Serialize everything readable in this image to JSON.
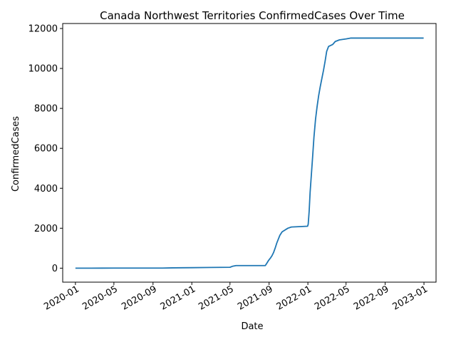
{
  "chart_data": {
    "type": "line",
    "title": "Canada Northwest Territories ConfirmedCases Over Time",
    "xlabel": "Date",
    "ylabel": "ConfirmedCases",
    "grid": false,
    "legend": "none",
    "xlim": [
      "2019-11-22",
      "2023-02-08"
    ],
    "ylim": [
      -700,
      12250
    ],
    "x_ticks": [
      "2020-01",
      "2020-05",
      "2020-09",
      "2021-01",
      "2021-05",
      "2021-09",
      "2022-01",
      "2022-05",
      "2022-09",
      "2023-01"
    ],
    "y_ticks": [
      0,
      2000,
      4000,
      6000,
      8000,
      10000,
      12000
    ],
    "series": [
      {
        "color": "#1f77b4",
        "points": [
          [
            "2020-01-01",
            0
          ],
          [
            "2020-03-25",
            2
          ],
          [
            "2020-05-01",
            5
          ],
          [
            "2020-10-01",
            5
          ],
          [
            "2020-11-01",
            15
          ],
          [
            "2021-01-01",
            25
          ],
          [
            "2021-03-01",
            35
          ],
          [
            "2021-05-01",
            45
          ],
          [
            "2021-05-10",
            100
          ],
          [
            "2021-05-20",
            130
          ],
          [
            "2021-08-20",
            130
          ],
          [
            "2021-08-25",
            250
          ],
          [
            "2021-08-30",
            380
          ],
          [
            "2021-09-05",
            500
          ],
          [
            "2021-09-10",
            620
          ],
          [
            "2021-09-15",
            780
          ],
          [
            "2021-09-20",
            1000
          ],
          [
            "2021-09-25",
            1250
          ],
          [
            "2021-09-30",
            1450
          ],
          [
            "2021-10-05",
            1650
          ],
          [
            "2021-10-12",
            1820
          ],
          [
            "2021-10-20",
            1900
          ],
          [
            "2021-10-30",
            2000
          ],
          [
            "2021-11-10",
            2060
          ],
          [
            "2021-12-31",
            2100
          ],
          [
            "2022-01-02",
            2200
          ],
          [
            "2022-01-05",
            2850
          ],
          [
            "2022-01-08",
            3800
          ],
          [
            "2022-01-12",
            4700
          ],
          [
            "2022-01-16",
            5600
          ],
          [
            "2022-01-20",
            6550
          ],
          [
            "2022-01-25",
            7450
          ],
          [
            "2022-01-30",
            8100
          ],
          [
            "2022-02-04",
            8650
          ],
          [
            "2022-02-09",
            9100
          ],
          [
            "2022-02-14",
            9500
          ],
          [
            "2022-02-19",
            9900
          ],
          [
            "2022-02-24",
            10350
          ],
          [
            "2022-03-01",
            10850
          ],
          [
            "2022-03-07",
            11100
          ],
          [
            "2022-03-20",
            11200
          ],
          [
            "2022-03-28",
            11350
          ],
          [
            "2022-04-10",
            11430
          ],
          [
            "2022-05-01",
            11480
          ],
          [
            "2022-05-15",
            11520
          ],
          [
            "2022-12-31",
            11520
          ]
        ]
      }
    ]
  }
}
